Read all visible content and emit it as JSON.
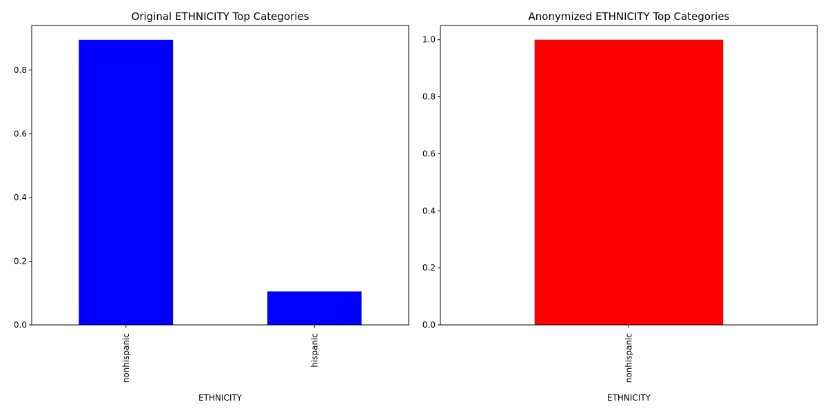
{
  "chart_data": [
    {
      "type": "bar",
      "title": "Original ETHNICITY Top Categories",
      "xlabel": "ETHNICITY",
      "ylabel": "",
      "categories": [
        "nonhispanic",
        "hispanic"
      ],
      "values": [
        0.895,
        0.105
      ],
      "ylim": [
        0,
        0.94
      ],
      "yticks": [
        0.0,
        0.2,
        0.4,
        0.6,
        0.8
      ],
      "ytick_labels": [
        "0.0",
        "0.2",
        "0.4",
        "0.6",
        "0.8"
      ],
      "color": "#0000ff",
      "grid": false,
      "legend": "none"
    },
    {
      "type": "bar",
      "title": "Anonymized ETHNICITY Top Categories",
      "xlabel": "ETHNICITY",
      "ylabel": "",
      "categories": [
        "nonhispanic"
      ],
      "values": [
        1.0
      ],
      "ylim": [
        0,
        1.05
      ],
      "yticks": [
        0.0,
        0.2,
        0.4,
        0.6,
        0.8,
        1.0
      ],
      "ytick_labels": [
        "0.0",
        "0.2",
        "0.4",
        "0.6",
        "0.8",
        "1.0"
      ],
      "color": "#ff0000",
      "grid": false,
      "legend": "none"
    }
  ]
}
